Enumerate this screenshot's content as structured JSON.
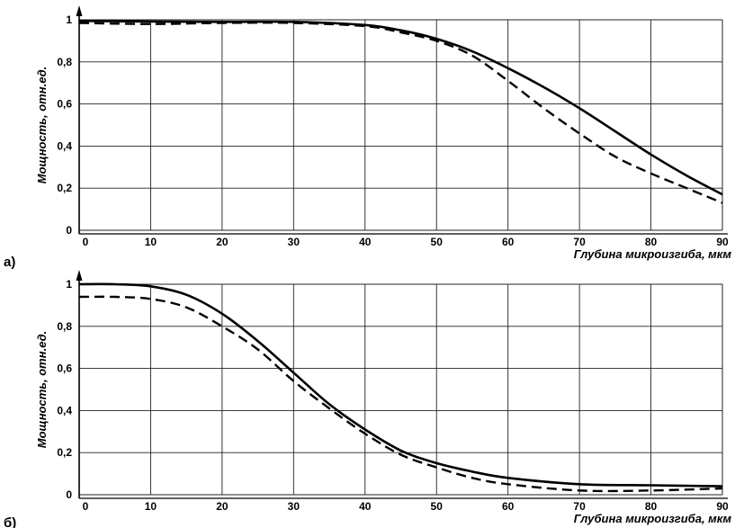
{
  "chart_data": [
    {
      "type": "line",
      "panel_label": "а)",
      "xlabel": "Глубина микроизгиба, мкм",
      "ylabel": "Мощность, отн.ед.",
      "xlim": [
        0,
        90
      ],
      "ylim": [
        0,
        1
      ],
      "x_ticks": [
        "0",
        "10",
        "20",
        "30",
        "40",
        "50",
        "60",
        "70",
        "80",
        "90"
      ],
      "y_ticks": [
        "0",
        "0,2",
        "0,4",
        "0,6",
        "0,8",
        "1"
      ],
      "grid": true,
      "series": [
        {
          "style": "solid",
          "x": [
            0,
            10,
            20,
            30,
            40,
            45,
            50,
            55,
            60,
            65,
            70,
            75,
            80,
            85,
            90
          ],
          "y": [
            0.995,
            0.992,
            0.99,
            0.99,
            0.975,
            0.95,
            0.91,
            0.85,
            0.77,
            0.68,
            0.58,
            0.47,
            0.36,
            0.26,
            0.17
          ]
        },
        {
          "style": "dashed",
          "x": [
            0,
            10,
            20,
            30,
            40,
            45,
            50,
            55,
            60,
            65,
            70,
            75,
            80,
            85,
            90
          ],
          "y": [
            0.985,
            0.98,
            0.985,
            0.985,
            0.97,
            0.94,
            0.9,
            0.83,
            0.71,
            0.58,
            0.46,
            0.35,
            0.27,
            0.2,
            0.13
          ]
        }
      ]
    },
    {
      "type": "line",
      "panel_label": "б)",
      "xlabel": "Глубина микроизгиба, мкм",
      "ylabel": "Мощность, отн.ед.",
      "xlim": [
        0,
        90
      ],
      "ylim": [
        0,
        1
      ],
      "x_ticks": [
        "0",
        "10",
        "20",
        "30",
        "40",
        "50",
        "60",
        "70",
        "80",
        "90"
      ],
      "y_ticks": [
        "0",
        "0,2",
        "0,4",
        "0,6",
        "0,8",
        "1"
      ],
      "grid": true,
      "series": [
        {
          "style": "solid",
          "x": [
            0,
            5,
            10,
            15,
            20,
            25,
            30,
            35,
            40,
            45,
            50,
            55,
            60,
            70,
            80,
            90
          ],
          "y": [
            1.0,
            1.0,
            0.99,
            0.95,
            0.86,
            0.73,
            0.58,
            0.43,
            0.31,
            0.21,
            0.15,
            0.11,
            0.08,
            0.05,
            0.045,
            0.04
          ]
        },
        {
          "style": "dashed",
          "x": [
            0,
            5,
            10,
            15,
            20,
            25,
            30,
            35,
            40,
            45,
            50,
            55,
            60,
            70,
            80,
            90
          ],
          "y": [
            0.94,
            0.94,
            0.93,
            0.89,
            0.8,
            0.69,
            0.54,
            0.41,
            0.29,
            0.19,
            0.13,
            0.08,
            0.05,
            0.02,
            0.02,
            0.03
          ]
        }
      ]
    }
  ]
}
